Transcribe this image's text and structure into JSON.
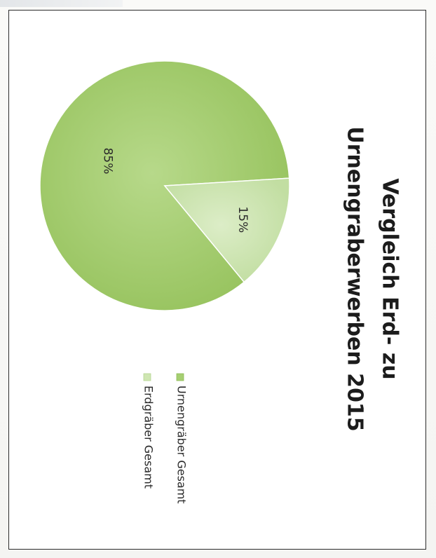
{
  "chart_data": {
    "type": "pie",
    "title": "Vergleich Erd- zu Urnengraberwerben 2015",
    "title_lines": [
      "Vergleich Erd- zu",
      "Urnengraberwerben 2015"
    ],
    "slices": [
      {
        "name": "Urnengräber Gesamt",
        "value": 85,
        "label": "85%",
        "color": "#a6cf72"
      },
      {
        "name": "Erdgräber Gesamt",
        "value": 15,
        "label": "15%",
        "color": "#cfe6b2"
      }
    ],
    "legend_position": "right"
  }
}
